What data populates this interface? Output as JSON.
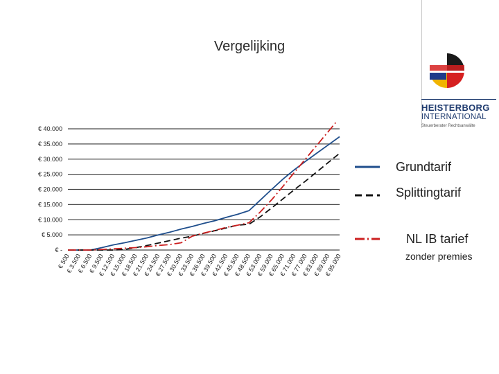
{
  "slide": {
    "title": "Vergelijking"
  },
  "logo": {
    "name": "HEISTERBORG",
    "sub": "INTERNATIONAL",
    "tagline": "Steuerberater Rechtsanwälte",
    "colors": [
      "#1a1a1a",
      "#d62020",
      "#f0b400",
      "#ffffff",
      "#1e3a8a"
    ]
  },
  "legend": {
    "grund": "Grundtarif",
    "splitting": "Splittingtarif",
    "nl": "NL  IB tarief",
    "nl_sub": "zonder premies"
  },
  "chart_data": {
    "type": "line",
    "title": "",
    "xlabel": "",
    "ylabel": "",
    "categories": [
      "€ 500",
      "€ 3.500",
      "€ 6.500",
      "€ 9.500",
      "€ 12.500",
      "€ 15.000",
      "€ 18.500",
      "€ 21.500",
      "€ 24.500",
      "€ 27.500",
      "€ 30.500",
      "€ 33.500",
      "€ 36.500",
      "€ 39.500",
      "€ 42.500",
      "€ 45.500",
      "€ 48.500",
      "€ 53.000",
      "€ 59.000",
      "€ 65.000",
      "€ 71.000",
      "€ 77.000",
      "€ 83.000",
      "€ 89.000",
      "€ 95.000"
    ],
    "y_ticks": [
      0,
      5000,
      10000,
      15000,
      20000,
      25000,
      30000,
      35000,
      40000
    ],
    "y_tick_labels": [
      "€ -",
      "€ 5.000",
      "€ 10.000",
      "€ 15.000",
      "€ 20.000",
      "€ 25.000",
      "€ 30.000",
      "€ 35.000",
      "€ 40.000"
    ],
    "ylim": [
      0,
      40000
    ],
    "grid": true,
    "legend_position": "right",
    "series": [
      {
        "name": "Grundtarif",
        "color": "#1f4e8c",
        "dash": "solid",
        "values": [
          0,
          0,
          0,
          800,
          1700,
          2400,
          3200,
          4000,
          5000,
          5900,
          6900,
          7800,
          8800,
          9700,
          10800,
          11800,
          13000,
          16500,
          20000,
          23400,
          26500,
          29300,
          32000,
          34700,
          37400
        ]
      },
      {
        "name": "Splittingtarif",
        "color": "#111111",
        "dash": "dash",
        "values": [
          0,
          0,
          0,
          0,
          0,
          200,
          800,
          1500,
          2300,
          3100,
          3900,
          4600,
          5500,
          6400,
          7300,
          8200,
          8500,
          11000,
          13900,
          16900,
          19900,
          22800,
          25800,
          28900,
          31900
        ]
      },
      {
        "name": "NL  IB tarief zonder premies",
        "color": "#cc1f1f",
        "dash": "dashdot",
        "values": [
          0,
          0,
          0,
          200,
          400,
          600,
          800,
          1100,
          1500,
          1800,
          2400,
          4600,
          5600,
          6500,
          7500,
          8200,
          9000,
          12600,
          16600,
          21000,
          25600,
          30100,
          34600,
          39100,
          43600
        ]
      }
    ]
  }
}
